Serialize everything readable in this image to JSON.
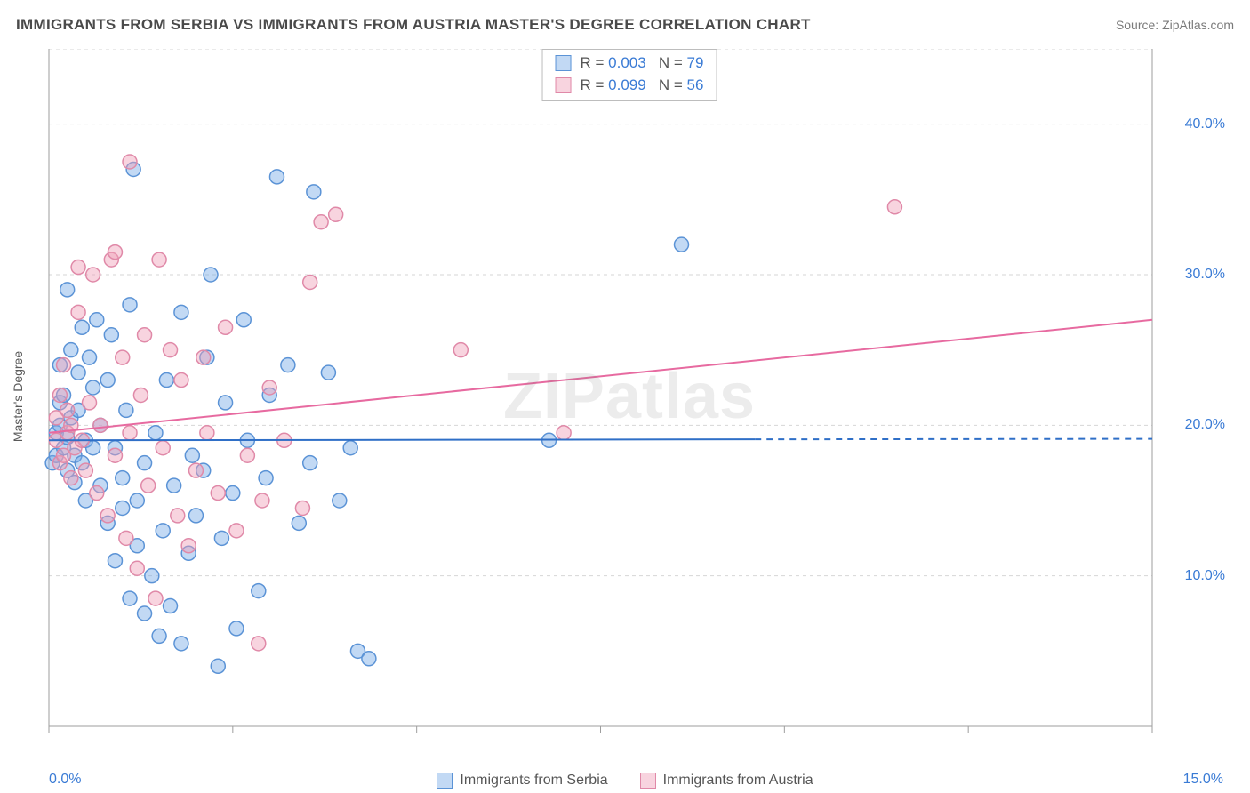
{
  "header": {
    "title": "IMMIGRANTS FROM SERBIA VS IMMIGRANTS FROM AUSTRIA MASTER'S DEGREE CORRELATION CHART",
    "source": "Source: ZipAtlas.com"
  },
  "watermark": "ZIPatlas",
  "chart": {
    "type": "scatter",
    "ylabel": "Master's Degree",
    "background_color": "#ffffff",
    "grid_color": "#d6d6d6",
    "axis_color": "#9e9e9e",
    "text_color": "#555555",
    "value_color": "#3a7bd5",
    "xlim": [
      0.0,
      15.0
    ],
    "ylim": [
      0.0,
      45.0
    ],
    "y_ticks": [
      10.0,
      20.0,
      30.0,
      40.0
    ],
    "y_tick_labels": [
      "10.0%",
      "20.0%",
      "30.0%",
      "40.0%"
    ],
    "x_start_label": "0.0%",
    "x_end_label": "15.0%",
    "marker_radius": 8,
    "marker_stroke_width": 1.5,
    "trend_line_width": 2,
    "series": [
      {
        "name": "Immigrants from Serbia",
        "fill": "rgba(120,170,230,0.45)",
        "stroke": "#5b93d6",
        "line_color": "#2f6fc7",
        "R": "0.003",
        "N": "79",
        "trend": {
          "y_at_x0": 19.0,
          "y_at_x15": 19.1,
          "solid_until_x": 9.6
        },
        "points": [
          [
            0.05,
            17.5
          ],
          [
            0.1,
            18.0
          ],
          [
            0.1,
            19.5
          ],
          [
            0.15,
            20.0
          ],
          [
            0.15,
            21.5
          ],
          [
            0.15,
            24.0
          ],
          [
            0.2,
            18.5
          ],
          [
            0.2,
            22.0
          ],
          [
            0.25,
            17.0
          ],
          [
            0.25,
            19.2
          ],
          [
            0.3,
            20.5
          ],
          [
            0.3,
            25.0
          ],
          [
            0.35,
            16.2
          ],
          [
            0.35,
            18.0
          ],
          [
            0.4,
            21.0
          ],
          [
            0.4,
            23.5
          ],
          [
            0.45,
            17.5
          ],
          [
            0.45,
            26.5
          ],
          [
            0.5,
            15.0
          ],
          [
            0.5,
            19.0
          ],
          [
            0.55,
            24.5
          ],
          [
            0.6,
            18.5
          ],
          [
            0.6,
            22.5
          ],
          [
            0.65,
            27.0
          ],
          [
            0.7,
            16.0
          ],
          [
            0.7,
            20.0
          ],
          [
            0.8,
            13.5
          ],
          [
            0.8,
            23.0
          ],
          [
            0.85,
            26.0
          ],
          [
            0.9,
            11.0
          ],
          [
            0.9,
            18.5
          ],
          [
            1.0,
            14.5
          ],
          [
            1.0,
            16.5
          ],
          [
            1.05,
            21.0
          ],
          [
            1.1,
            8.5
          ],
          [
            1.1,
            28.0
          ],
          [
            1.15,
            37.0
          ],
          [
            1.2,
            12.0
          ],
          [
            1.2,
            15.0
          ],
          [
            1.3,
            7.5
          ],
          [
            1.3,
            17.5
          ],
          [
            1.4,
            10.0
          ],
          [
            1.45,
            19.5
          ],
          [
            1.5,
            6.0
          ],
          [
            1.55,
            13.0
          ],
          [
            1.6,
            23.0
          ],
          [
            1.65,
            8.0
          ],
          [
            1.7,
            16.0
          ],
          [
            1.8,
            27.5
          ],
          [
            1.8,
            5.5
          ],
          [
            1.9,
            11.5
          ],
          [
            1.95,
            18.0
          ],
          [
            2.0,
            14.0
          ],
          [
            2.1,
            17.0
          ],
          [
            2.15,
            24.5
          ],
          [
            2.2,
            30.0
          ],
          [
            2.3,
            4.0
          ],
          [
            2.35,
            12.5
          ],
          [
            2.4,
            21.5
          ],
          [
            2.5,
            15.5
          ],
          [
            2.55,
            6.5
          ],
          [
            2.65,
            27.0
          ],
          [
            2.7,
            19.0
          ],
          [
            2.85,
            9.0
          ],
          [
            2.95,
            16.5
          ],
          [
            3.0,
            22.0
          ],
          [
            3.1,
            36.5
          ],
          [
            3.25,
            24.0
          ],
          [
            3.4,
            13.5
          ],
          [
            3.55,
            17.5
          ],
          [
            3.6,
            35.5
          ],
          [
            3.8,
            23.5
          ],
          [
            3.95,
            15.0
          ],
          [
            4.1,
            18.5
          ],
          [
            4.2,
            5.0
          ],
          [
            4.35,
            4.5
          ],
          [
            6.8,
            19.0
          ],
          [
            8.6,
            32.0
          ],
          [
            0.25,
            29.0
          ]
        ]
      },
      {
        "name": "Immigrants from Austria",
        "fill": "rgba(240,160,185,0.45)",
        "stroke": "#e089a8",
        "line_color": "#e76aa0",
        "R": "0.099",
        "N": "56",
        "trend": {
          "y_at_x0": 19.5,
          "y_at_x15": 27.0,
          "solid_until_x": 15.0
        },
        "points": [
          [
            0.1,
            19.0
          ],
          [
            0.1,
            20.5
          ],
          [
            0.15,
            17.5
          ],
          [
            0.15,
            22.0
          ],
          [
            0.2,
            18.0
          ],
          [
            0.2,
            24.0
          ],
          [
            0.25,
            19.5
          ],
          [
            0.25,
            21.0
          ],
          [
            0.3,
            16.5
          ],
          [
            0.3,
            20.0
          ],
          [
            0.35,
            18.5
          ],
          [
            0.4,
            27.5
          ],
          [
            0.45,
            19.0
          ],
          [
            0.5,
            17.0
          ],
          [
            0.55,
            21.5
          ],
          [
            0.6,
            30.0
          ],
          [
            0.65,
            15.5
          ],
          [
            0.7,
            20.0
          ],
          [
            0.8,
            14.0
          ],
          [
            0.85,
            31.0
          ],
          [
            0.9,
            31.5
          ],
          [
            0.9,
            18.0
          ],
          [
            1.0,
            24.5
          ],
          [
            1.05,
            12.5
          ],
          [
            1.1,
            19.5
          ],
          [
            1.1,
            37.5
          ],
          [
            1.2,
            10.5
          ],
          [
            1.25,
            22.0
          ],
          [
            1.3,
            26.0
          ],
          [
            1.35,
            16.0
          ],
          [
            1.45,
            8.5
          ],
          [
            1.5,
            31.0
          ],
          [
            1.55,
            18.5
          ],
          [
            1.65,
            25.0
          ],
          [
            1.75,
            14.0
          ],
          [
            1.8,
            23.0
          ],
          [
            1.9,
            12.0
          ],
          [
            2.0,
            17.0
          ],
          [
            2.1,
            24.5
          ],
          [
            2.15,
            19.5
          ],
          [
            2.3,
            15.5
          ],
          [
            2.4,
            26.5
          ],
          [
            2.55,
            13.0
          ],
          [
            2.7,
            18.0
          ],
          [
            2.85,
            5.5
          ],
          [
            2.9,
            15.0
          ],
          [
            3.0,
            22.5
          ],
          [
            3.2,
            19.0
          ],
          [
            3.45,
            14.5
          ],
          [
            3.55,
            29.5
          ],
          [
            3.7,
            33.5
          ],
          [
            3.9,
            34.0
          ],
          [
            5.6,
            25.0
          ],
          [
            7.0,
            19.5
          ],
          [
            11.5,
            34.5
          ],
          [
            0.4,
            30.5
          ]
        ]
      }
    ]
  }
}
